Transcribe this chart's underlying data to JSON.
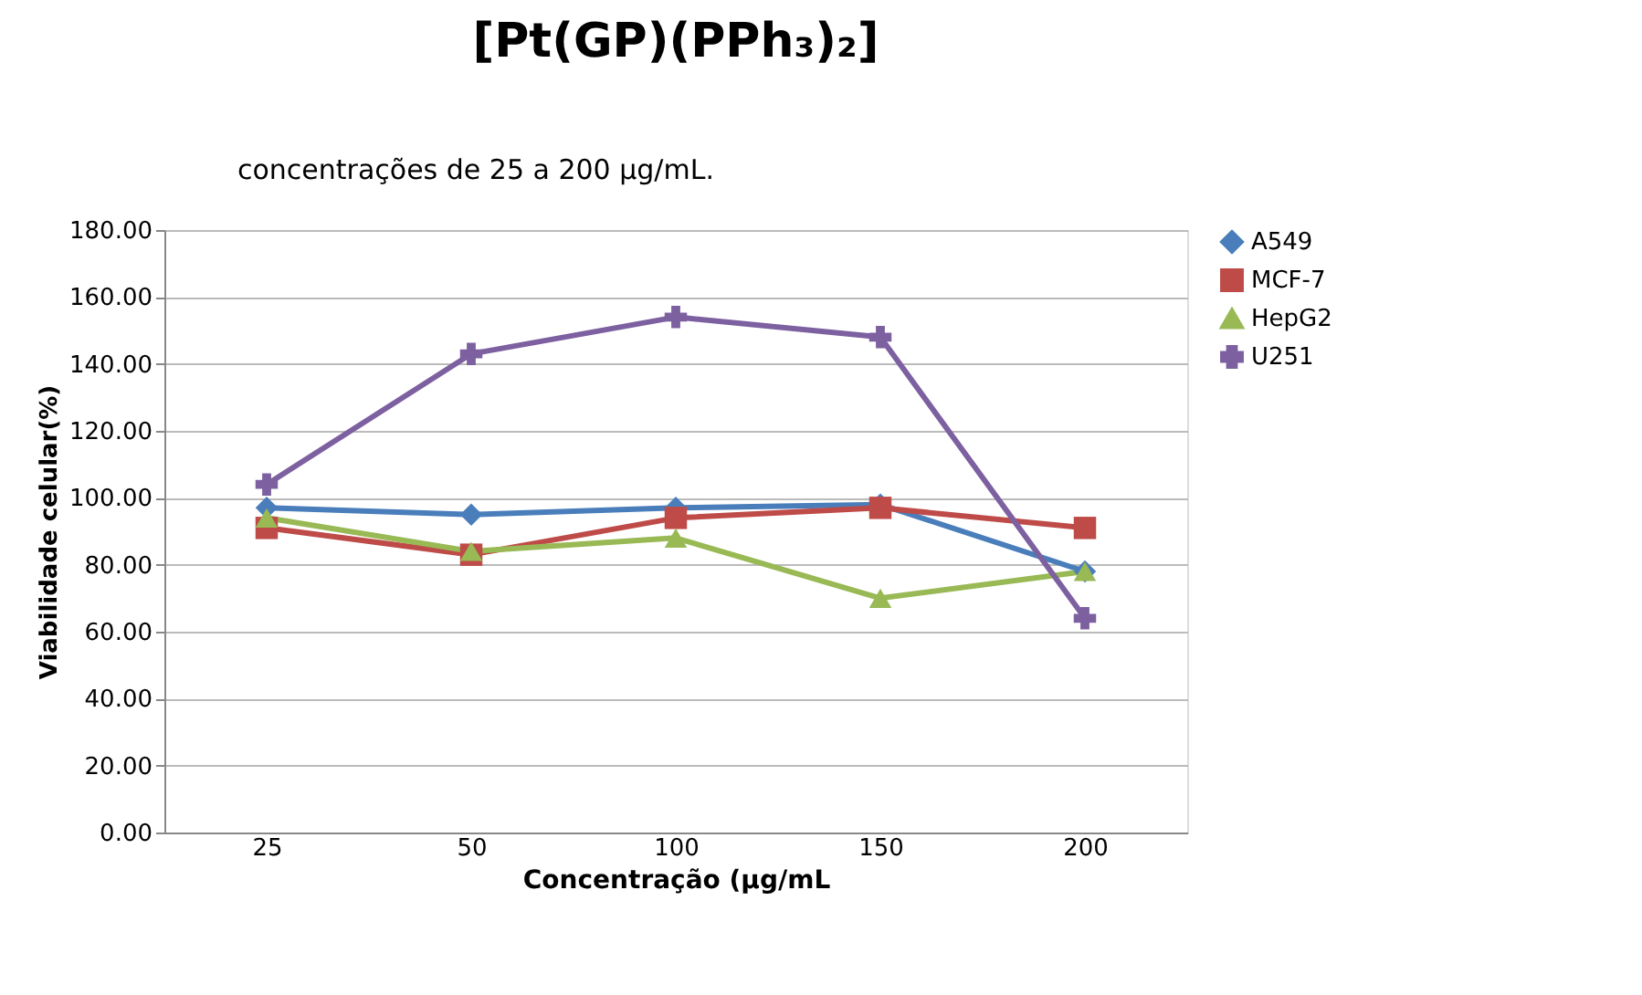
{
  "chart_data": {
    "type": "line",
    "title": "[Pt(GP)(PPh₃)₂]",
    "xlabel": "Concentração (µg/mL",
    "ylabel": "Viabilidade celular(%)",
    "annotations": [
      "concentrações de 25 a 200 µg/mL."
    ],
    "categories": [
      "25",
      "50",
      "100",
      "150",
      "200"
    ],
    "series": [
      {
        "name": "A549",
        "color": "#4a7ebb",
        "marker": "diamond",
        "values": [
          97,
          95,
          97,
          98,
          78
        ]
      },
      {
        "name": "MCF-7",
        "color": "#be4b48",
        "marker": "square",
        "values": [
          91,
          83,
          94,
          97,
          91
        ]
      },
      {
        "name": "HepG2",
        "color": "#98b954",
        "marker": "triangle",
        "values": [
          94,
          84,
          88,
          70,
          78
        ]
      },
      {
        "name": "U251",
        "color": "#7d60a0",
        "marker": "cross",
        "values": [
          104,
          143,
          154,
          148,
          64
        ]
      }
    ],
    "ylim": [
      0,
      180
    ],
    "yticks": [
      {
        "value": 0,
        "label": "0.00"
      },
      {
        "value": 20,
        "label": "20.00"
      },
      {
        "value": 40,
        "label": "40.00"
      },
      {
        "value": 60,
        "label": "60.00"
      },
      {
        "value": 80,
        "label": "80.00"
      },
      {
        "value": 100,
        "label": "100.00"
      },
      {
        "value": 120,
        "label": "120.00"
      },
      {
        "value": 140,
        "label": "140.00"
      },
      {
        "value": 160,
        "label": "160.00"
      },
      {
        "value": 180,
        "label": "180.00"
      }
    ],
    "grid": "y",
    "legend": "right",
    "line_style": "solid"
  }
}
